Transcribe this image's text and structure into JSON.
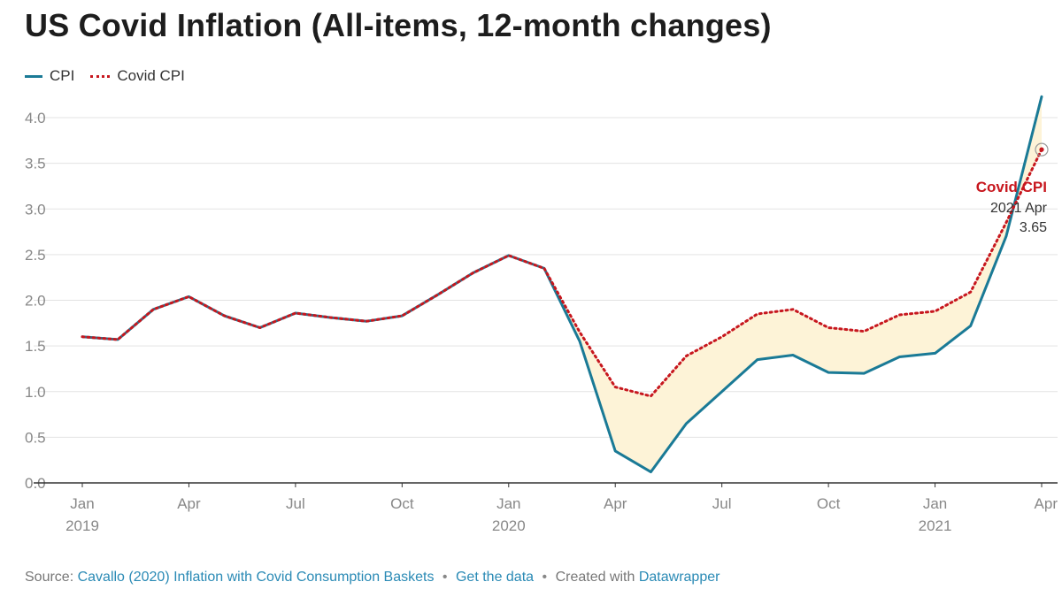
{
  "title": "US Covid Inflation (All-items, 12-month changes)",
  "legend": {
    "cpi": "CPI",
    "covid_cpi": "Covid CPI"
  },
  "annotation": {
    "label": "Covid CPI",
    "date": "2021 Apr",
    "value": "3.65"
  },
  "footer": {
    "source_label": "Source:",
    "source_link": "Cavallo (2020) Inflation with Covid Consumption Baskets",
    "data_link": "Get the data",
    "created_label": "Created with",
    "created_link": "Datawrapper"
  },
  "colors": {
    "cpi": "#1a7a96",
    "covid_cpi": "#c7171e",
    "fill": "#fdf3d7",
    "grid": "#e3e3e3"
  },
  "chart_data": {
    "type": "line",
    "x": [
      "2019-01",
      "2019-02",
      "2019-03",
      "2019-04",
      "2019-05",
      "2019-06",
      "2019-07",
      "2019-08",
      "2019-09",
      "2019-10",
      "2019-11",
      "2019-12",
      "2020-01",
      "2020-02",
      "2020-03",
      "2020-04",
      "2020-05",
      "2020-06",
      "2020-07",
      "2020-08",
      "2020-09",
      "2020-10",
      "2020-11",
      "2020-12",
      "2021-01",
      "2021-02",
      "2021-03",
      "2021-04"
    ],
    "x_tick_labels": [
      {
        "index": 0,
        "month": "Jan",
        "year": "2019"
      },
      {
        "index": 3,
        "month": "Apr",
        "year": ""
      },
      {
        "index": 6,
        "month": "Jul",
        "year": ""
      },
      {
        "index": 9,
        "month": "Oct",
        "year": ""
      },
      {
        "index": 12,
        "month": "Jan",
        "year": "2020"
      },
      {
        "index": 15,
        "month": "Apr",
        "year": ""
      },
      {
        "index": 18,
        "month": "Jul",
        "year": ""
      },
      {
        "index": 21,
        "month": "Oct",
        "year": ""
      },
      {
        "index": 24,
        "month": "Jan",
        "year": "2021"
      },
      {
        "index": 27,
        "month": "Apr",
        "year": ""
      }
    ],
    "y_ticks": [
      "0.0",
      "0.5",
      "1.0",
      "1.5",
      "2.0",
      "2.5",
      "3.0",
      "3.5",
      "4.0"
    ],
    "ylim": [
      0,
      4.0
    ],
    "series": [
      {
        "name": "CPI",
        "style": "solid",
        "values": [
          1.6,
          1.57,
          1.9,
          2.04,
          1.83,
          1.7,
          1.86,
          1.81,
          1.77,
          1.83,
          2.06,
          2.3,
          2.49,
          2.35,
          1.55,
          0.35,
          0.12,
          0.65,
          1.0,
          1.35,
          1.4,
          1.21,
          1.2,
          1.38,
          1.42,
          1.72,
          2.7,
          4.23
        ]
      },
      {
        "name": "Covid CPI",
        "style": "dotted",
        "values": [
          1.6,
          1.57,
          1.9,
          2.04,
          1.83,
          1.7,
          1.86,
          1.81,
          1.77,
          1.83,
          2.06,
          2.3,
          2.49,
          2.35,
          1.65,
          1.05,
          0.95,
          1.39,
          1.6,
          1.85,
          1.9,
          1.7,
          1.66,
          1.84,
          1.88,
          2.09,
          2.85,
          3.65
        ]
      }
    ],
    "grid": true,
    "legend_position": "top-left"
  }
}
